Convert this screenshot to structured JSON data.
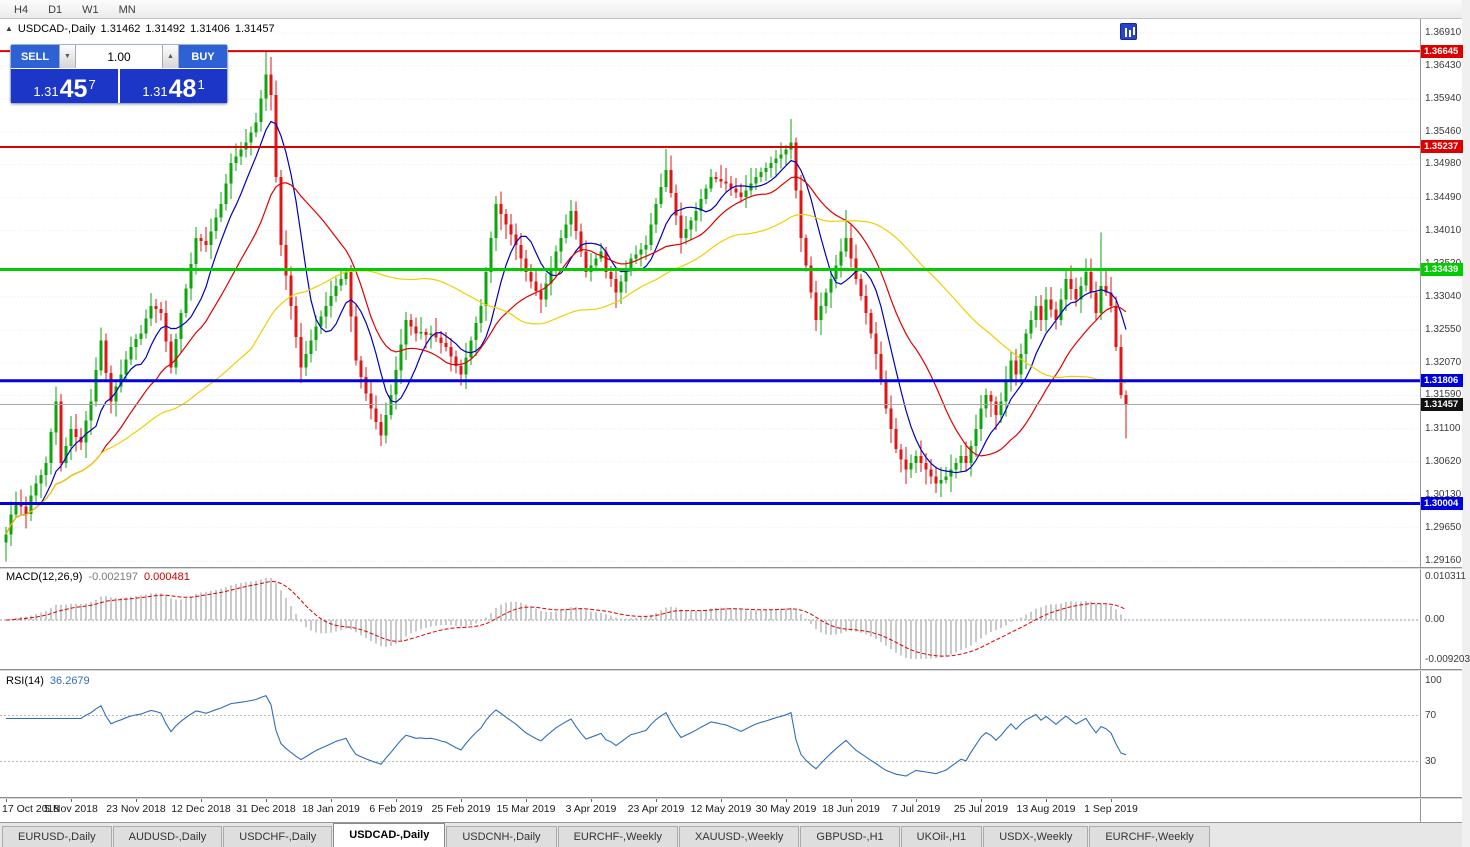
{
  "toolbar": {
    "timeframes": [
      "H4",
      "D1",
      "W1",
      "MN"
    ]
  },
  "chart": {
    "title": "USDCAD-,Daily",
    "open": "1.31462",
    "high": "1.31492",
    "low": "1.31406",
    "close": "1.31457"
  },
  "icons": {
    "oct_toggle": "▲",
    "spin_down": "▼",
    "spin_up": "▲"
  },
  "trade_panel": {
    "sell_label": "SELL",
    "buy_label": "BUY",
    "volume": "1.00",
    "sell_price": {
      "big": "1.31",
      "mid": "45",
      "sup": "7"
    },
    "buy_price": {
      "big": "1.31",
      "mid": "48",
      "sup": "1"
    }
  },
  "price_axis": {
    "ticks": [
      "1.36910",
      "1.36430",
      "1.35940",
      "1.35460",
      "1.34980",
      "1.34490",
      "1.34010",
      "1.33520",
      "1.33040",
      "1.32550",
      "1.32070",
      "1.31590",
      "1.31100",
      "1.30620",
      "1.30130",
      "1.29650",
      "1.29160"
    ],
    "current_price": "1.31457",
    "current_price_value": 1.31457
  },
  "macd_panel": {
    "label": "MACD(12,26,9)",
    "value1": "-0.002197",
    "value2": "0.000481",
    "axis": [
      "0.010311",
      "0.00",
      "-0.009203"
    ],
    "axis_values": [
      0.010311,
      0.0,
      -0.009203
    ]
  },
  "rsi_panel": {
    "label": "RSI(14)",
    "value": "36.2679",
    "axis": [
      "100",
      "70",
      "30"
    ],
    "axis_values": [
      100,
      70,
      30
    ],
    "level_lines": [
      70,
      30
    ]
  },
  "date_axis": {
    "labels": [
      "17 Oct 2018",
      "5 Nov 2018",
      "23 Nov 2018",
      "12 Dec 2018",
      "31 Dec 2018",
      "18 Jan 2019",
      "6 Feb 2019",
      "25 Feb 2019",
      "15 Mar 2019",
      "3 Apr 2019",
      "23 Apr 2019",
      "12 May 2019",
      "30 May 2019",
      "18 Jun 2019",
      "7 Jul 2019",
      "25 Jul 2019",
      "13 Aug 2019",
      "1 Sep 2019"
    ]
  },
  "tabs": [
    {
      "label": "EURUSD-,Daily",
      "active": false
    },
    {
      "label": "AUDUSD-,Daily",
      "active": false
    },
    {
      "label": "USDCHF-,Daily",
      "active": false
    },
    {
      "label": "USDCAD-,Daily",
      "active": true
    },
    {
      "label": "USDCNH-,Daily",
      "active": false
    },
    {
      "label": "EURCHF-,Weekly",
      "active": false
    },
    {
      "label": "XAUUSD-,Weekly",
      "active": false
    },
    {
      "label": "GBPUSD-,H1",
      "active": false
    },
    {
      "label": "UKOil-,H1",
      "active": false
    },
    {
      "label": "USDX-,Weekly",
      "active": false
    },
    {
      "label": "EURCHF-,Weekly",
      "active": false
    }
  ],
  "chart_data": {
    "type": "candlestick-with-indicators",
    "symbol": "USDCAD",
    "timeframe": "Daily",
    "price_range": {
      "top": 1.3691,
      "bottom": 1.2916
    },
    "bars_per_x_tick": 13,
    "colors": {
      "up": "#0ca50c",
      "down": "#e11515",
      "macd_hist": "#bdbdbd",
      "macd_signal": "#dd0000",
      "rsi_line": "#2f6fba"
    },
    "moving_averages": [
      {
        "period": 8,
        "color": "#0000c0"
      },
      {
        "period": 20,
        "color": "#e00000"
      },
      {
        "period": 50,
        "color": "#ecd100"
      }
    ],
    "macd": {
      "fast": 12,
      "slow": 26,
      "signal": 9,
      "current_macd": -0.002197,
      "current_signal": 0.000481
    },
    "rsi": {
      "period": 14,
      "current": 36.2679
    },
    "horizontal_lines": [
      {
        "price": 1.36645,
        "label": "1.36645",
        "color": "#dd0000",
        "width": 2
      },
      {
        "price": 1.35237,
        "label": "1.35237",
        "color": "#dd0000",
        "width": 2
      },
      {
        "price": 1.33439,
        "label": "1.33439",
        "color": "#00cc00",
        "width": 3
      },
      {
        "price": 1.31806,
        "label": "1.31806",
        "color": "#0000dd",
        "width": 3
      },
      {
        "price": 1.30004,
        "label": "1.30004",
        "color": "#0000dd",
        "width": 3
      }
    ],
    "closes": [
      1.2955,
      1.2984,
      1.3,
      1.2996,
      1.2985,
      1.3012,
      1.303,
      1.3042,
      1.306,
      1.3105,
      1.315,
      1.306,
      1.3085,
      1.311,
      1.3098,
      1.309,
      1.3122,
      1.315,
      1.3196,
      1.324,
      1.3192,
      1.315,
      1.3172,
      1.319,
      1.3212,
      1.323,
      1.3242,
      1.325,
      1.3272,
      1.329,
      1.3286,
      1.328,
      1.3238,
      1.32,
      1.3242,
      1.328,
      1.3316,
      1.3352,
      1.339,
      1.3386,
      1.338,
      1.34,
      1.342,
      1.344,
      1.347,
      1.35,
      1.351,
      1.352,
      1.353,
      1.3545,
      1.356,
      1.3595,
      1.363,
      1.36,
      1.348,
      1.338,
      1.3335,
      1.329,
      1.3245,
      1.32,
      1.322,
      1.324,
      1.326,
      1.3275,
      1.329,
      1.3305,
      1.332,
      1.333,
      1.334,
      1.3275,
      1.321,
      1.3186,
      1.3162,
      1.314,
      1.312,
      1.31,
      1.313,
      1.316,
      1.3196,
      1.3234,
      1.327,
      1.326,
      1.325,
      1.3252,
      1.3248,
      1.325,
      1.3244,
      1.3236,
      1.323,
      1.3216,
      1.3202,
      1.319,
      1.3215,
      1.324,
      1.3265,
      1.329,
      1.334,
      1.339,
      1.344,
      1.3425,
      1.341,
      1.3395,
      1.338,
      1.336,
      1.334,
      1.3326,
      1.3312,
      1.33,
      1.3323,
      1.3346,
      1.337,
      1.339,
      1.341,
      1.343,
      1.34,
      1.337,
      1.334,
      1.335,
      1.336,
      1.337,
      1.334,
      1.333,
      1.331,
      1.3326,
      1.3343,
      1.336,
      1.3366,
      1.3373,
      1.338,
      1.341,
      1.344,
      1.3465,
      1.349,
      1.3456,
      1.3423,
      1.339,
      1.3403,
      1.3416,
      1.343,
      1.3447,
      1.3463,
      1.348,
      1.3477,
      1.3473,
      1.347,
      1.3463,
      1.3457,
      1.345,
      1.346,
      1.347,
      1.348,
      1.3487,
      1.3493,
      1.35,
      1.3507,
      1.3513,
      1.352,
      1.353,
      1.346,
      1.339,
      1.335,
      1.331,
      1.327,
      1.329,
      1.331,
      1.333,
      1.335,
      1.337,
      1.339,
      1.336,
      1.333,
      1.3305,
      1.328,
      1.325,
      1.322,
      1.318,
      1.314,
      1.311,
      1.308,
      1.3065,
      1.305,
      1.306,
      1.307,
      1.306,
      1.305,
      1.304,
      1.303,
      1.3035,
      1.304,
      1.305,
      1.306,
      1.307,
      1.306,
      1.3085,
      1.311,
      1.314,
      1.316,
      1.315,
      1.313,
      1.315,
      1.318,
      1.321,
      1.319,
      1.322,
      1.325,
      1.327,
      1.329,
      1.327,
      1.33,
      1.3285,
      1.327,
      1.33,
      1.333,
      1.3315,
      1.33,
      1.332,
      1.334,
      1.331,
      1.328,
      1.332,
      1.331,
      1.329,
      1.323,
      1.316,
      1.3146
    ],
    "wick_overrides": {
      "0": {
        "l": 1.2915
      },
      "10": {
        "h": 1.3172
      },
      "52": {
        "h": 1.36645
      },
      "53": {
        "h": 1.3656
      },
      "98": {
        "h": 1.3452
      },
      "132": {
        "h": 1.3521
      },
      "157": {
        "h": 1.3565
      },
      "168": {
        "h": 1.3431
      },
      "186": {
        "l": 1.3016
      },
      "219": {
        "h": 1.3398
      },
      "224": {
        "l": 1.3096
      }
    }
  }
}
